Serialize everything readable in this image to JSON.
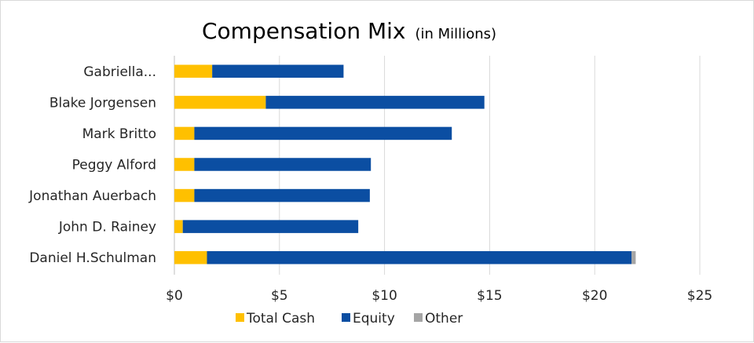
{
  "chart_data": {
    "type": "bar",
    "orientation": "horizontal",
    "stacked": true,
    "title": "Compensation Mix",
    "subtitle": "(in Millions)",
    "categories": [
      "Gabriella...",
      "Blake Jorgensen",
      "Mark Britto",
      "Peggy Alford",
      "Jonathan Auerbach",
      "John D. Rainey",
      "Daniel H.Schulman"
    ],
    "series": [
      {
        "name": "Total Cash",
        "color": "#FFC000",
        "values": [
          1.8,
          4.35,
          0.95,
          0.95,
          0.95,
          0.4,
          1.55
        ]
      },
      {
        "name": "Equity",
        "color": "#0B4EA2",
        "values": [
          6.25,
          10.4,
          12.25,
          8.4,
          8.35,
          8.35,
          20.2
        ]
      },
      {
        "name": "Other",
        "color": "#A5A5A5",
        "values": [
          0,
          0,
          0,
          0,
          0,
          0,
          0.2
        ]
      }
    ],
    "xlim": [
      0,
      25
    ],
    "xticks": [
      0,
      5,
      10,
      15,
      20,
      25
    ],
    "xtick_labels": [
      "$0",
      "$5",
      "$10",
      "$15",
      "$20",
      "$25"
    ],
    "grid": true,
    "legend_position": "bottom"
  }
}
